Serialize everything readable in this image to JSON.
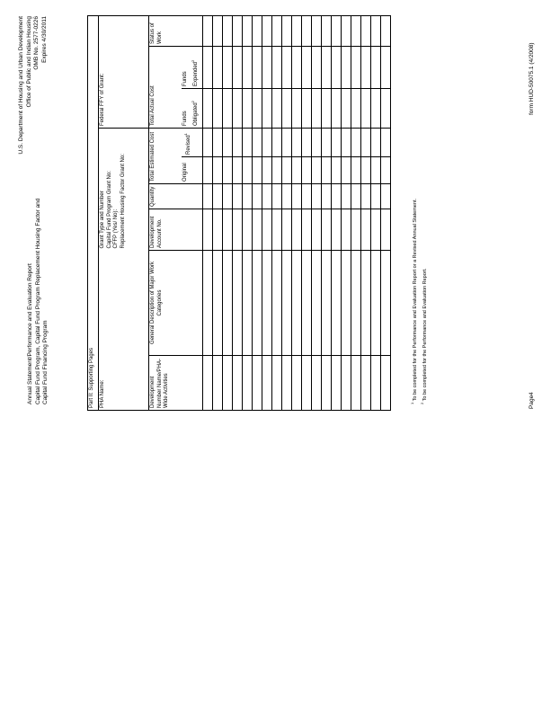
{
  "header": {
    "title_lines": [
      "Annual Statement/Performance and Evaluation Report",
      "Capital Fund Program, Capital Fund Program Replacement Housing Factor and",
      "Capital Fund Financing Program"
    ],
    "agency_lines": [
      "U.S. Department of Housing and Urban Development",
      "Office of Public and Indian Housing",
      "OMB No. 2577-0226",
      "Expires 4/30/2011"
    ]
  },
  "table": {
    "part_title": "Part II: Supporting Pages",
    "pha_name_label": "PHA Name:",
    "grant_lines": [
      "Grant Type and Number",
      "Capital Fund Program Grant No:",
      "CFFP (Yes/ No):",
      "Replacement Housing Factor Grant No:"
    ],
    "federal_ffy_label": "Federal FFY of Grant:",
    "columns": {
      "dev_number": "Development Number Name/PHA-Wide Activities",
      "general_description": "General Description of Major Work Categories",
      "dev_account": "Development Account No.",
      "quantity": "Quantity",
      "total_estimated": "Total Estimated Cost",
      "original": "Original",
      "revised": "Revised",
      "revised_sup": "1",
      "total_actual": "Total Actual Cost",
      "funds_obligated": "Funds Obligated",
      "funds_obligated_sup": "2",
      "funds_expended": "Funds Expended",
      "funds_expended_sup": "2",
      "status": "Status of Work"
    },
    "empty_row_count": 19
  },
  "footnotes": [
    {
      "mark": "1",
      "text": "To be completed for the Performance and Evaluation Report or a Revised Annual Statement."
    },
    {
      "mark": "2",
      "text": "To be completed for the Performance and Evaluation Report."
    }
  ],
  "footer": {
    "page": "Page4",
    "form_id": "form HUD-50075.1 (4/2008)"
  }
}
